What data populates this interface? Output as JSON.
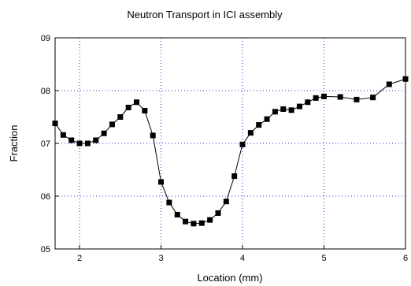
{
  "chart_data": {
    "type": "line",
    "title": "Neutron Transport in ICI assembly",
    "xlabel": "Location (mm)",
    "ylabel": "Fraction",
    "xlim": [
      1.7,
      6.0
    ],
    "ylim": [
      0.5,
      0.9
    ],
    "grid": true,
    "xticks": [
      2,
      3,
      4,
      5,
      6
    ],
    "xtick_labels": [
      "2",
      "3",
      "4",
      "5",
      "6"
    ],
    "yticks": [
      0.5,
      0.6,
      0.7,
      0.8,
      0.9
    ],
    "ytick_labels": [
      "05",
      "06",
      "07",
      "08",
      "09"
    ],
    "series": [
      {
        "marker": "square",
        "color": "#000000",
        "x": [
          1.7,
          1.8,
          1.9,
          2.0,
          2.1,
          2.2,
          2.3,
          2.4,
          2.5,
          2.6,
          2.7,
          2.8,
          2.9,
          3.0,
          3.1,
          3.2,
          3.3,
          3.4,
          3.5,
          3.6,
          3.7,
          3.8,
          3.9,
          4.0,
          4.1,
          4.2,
          4.3,
          4.4,
          4.5,
          4.6,
          4.7,
          4.8,
          4.9,
          5.0,
          5.2,
          5.4,
          5.6,
          5.8,
          6.0
        ],
        "y": [
          0.738,
          0.716,
          0.706,
          0.7,
          0.7,
          0.706,
          0.719,
          0.736,
          0.75,
          0.768,
          0.778,
          0.762,
          0.715,
          0.627,
          0.588,
          0.565,
          0.552,
          0.548,
          0.549,
          0.555,
          0.568,
          0.59,
          0.638,
          0.698,
          0.72,
          0.735,
          0.746,
          0.76,
          0.765,
          0.763,
          0.77,
          0.778,
          0.786,
          0.789,
          0.788,
          0.783,
          0.787,
          0.812,
          0.822
        ]
      }
    ]
  }
}
